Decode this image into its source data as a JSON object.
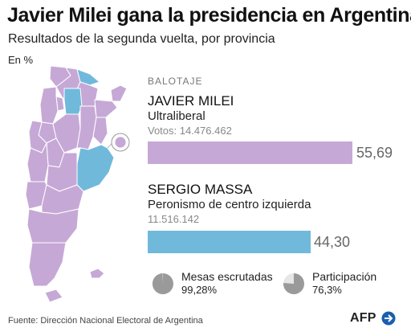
{
  "header": {
    "title": "Javier Milei gana la presidencia en Argentina",
    "subtitle": "Resultados de la segunda vuelta, por provincia",
    "unit": "En %"
  },
  "legend_section": "BALOTAJE",
  "candidates": [
    {
      "name": "JAVIER MILEI",
      "party": "Ultraliberal",
      "votes_label": "Votos: 14.476.462",
      "percent_label": "55,69",
      "percent": 55.69,
      "color": "#c6a8d6"
    },
    {
      "name": "SERGIO MASSA",
      "party": "Peronismo de centro izquierda",
      "votes_label": "11.516.142",
      "percent_label": "44,30",
      "percent": 44.3,
      "color": "#70b9db"
    }
  ],
  "stats": [
    {
      "label": "Mesas escrutadas",
      "value": "99,28%",
      "fraction": 0.9928
    },
    {
      "label": "Participación",
      "value": "76,3%",
      "fraction": 0.763
    }
  ],
  "map_regions": [
    {
      "winner": "Javier Milei",
      "color": "#c6a8d6"
    },
    {
      "winner": "Sergio Massa",
      "color": "#70b9db"
    }
  ],
  "source": "Fuente: Dirección Nacional Electoral de Argentina",
  "logo": {
    "text": "AFP",
    "color": "#1a5fae"
  }
}
